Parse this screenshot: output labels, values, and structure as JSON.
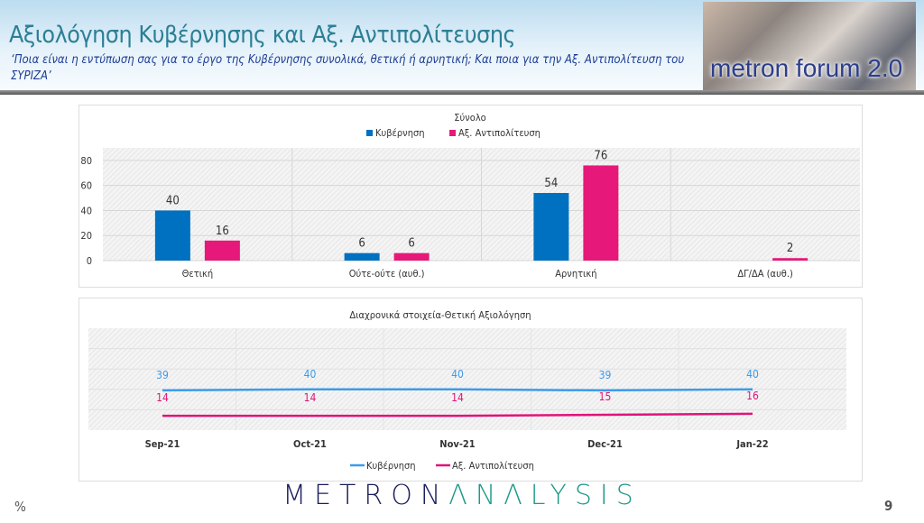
{
  "header": {
    "title": "Αξιολόγηση Κυβέρνησης και Αξ. Αντιπολίτευσης",
    "subtitle": "‘Ποια είναι η εντύπωση σας για το έργο της Κυβέρνησης συνολικά, θετική ή αρνητική; Και ποια για την Αξ. Αντιπολίτευση του ΣΥΡΙΖΑ’",
    "logo_text": "metron forum 2.0"
  },
  "colors": {
    "gov": "#0070c0",
    "opp": "#e6197a",
    "gov_line": "#3d9be9",
    "opp_line": "#e0137a"
  },
  "chart_data": [
    {
      "type": "bar",
      "title": "Σύνολο",
      "categories": [
        "Θετική",
        "Ούτε-ούτε (αυθ.)",
        "Αρνητική",
        "ΔΓ/ΔΑ (αυθ.)"
      ],
      "series": [
        {
          "name": "Κυβέρνηση",
          "values": [
            40,
            6,
            54,
            null
          ]
        },
        {
          "name": "Αξ. Αντιπολίτευση",
          "values": [
            16,
            6,
            76,
            2
          ]
        }
      ],
      "yticks": [
        0,
        20,
        40,
        60,
        80
      ],
      "ylim": [
        0,
        90
      ],
      "legend": "top",
      "grid": true
    },
    {
      "type": "line",
      "title": "Διαχρονικά στοιχεία-Θετική Αξιολόγηση",
      "categories": [
        "Sep-21",
        "Oct-21",
        "Nov-21",
        "Dec-21",
        "Jan-22"
      ],
      "series": [
        {
          "name": "Κυβέρνηση",
          "values": [
            39,
            40,
            40,
            39,
            40
          ]
        },
        {
          "name": "Αξ. Αντιπολίτευση",
          "values": [
            14,
            14,
            14,
            15,
            16
          ]
        }
      ],
      "ylim": [
        0,
        100
      ],
      "legend": "bottom",
      "grid": true
    }
  ],
  "footer": {
    "unit": "%",
    "brand_left": "METRON",
    "brand_right": "ΛNΛLYSIS",
    "page": "9"
  }
}
